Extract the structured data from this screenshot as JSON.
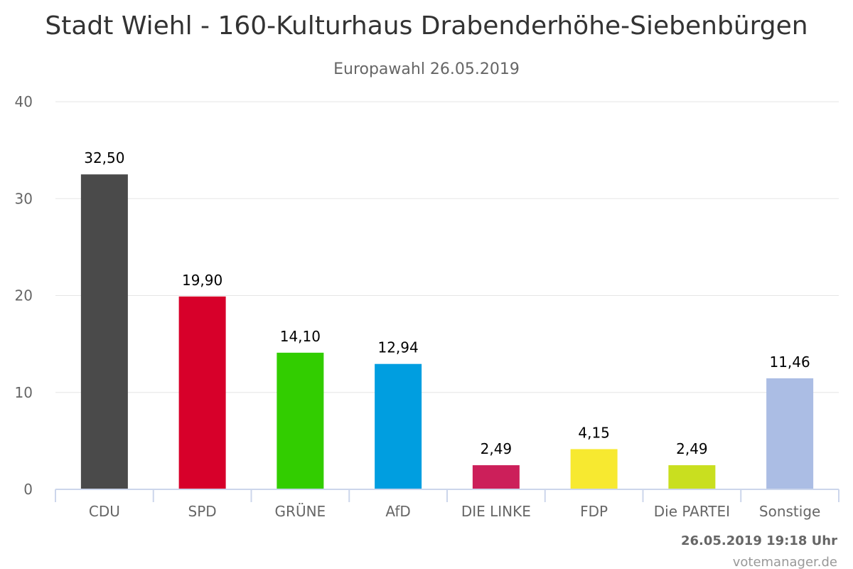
{
  "timestamp": "26.05.2019 19:18 Uhr",
  "credit": "votemanager.de",
  "chart_data": {
    "type": "bar",
    "title": "Stadt Wiehl - 160-Kulturhaus Drabenderhöhe-Siebenbürgen",
    "subtitle": "Europawahl 26.05.2019",
    "categories": [
      "CDU",
      "SPD",
      "GRÜNE",
      "AfD",
      "DIE LINKE",
      "FDP",
      "Die PARTEI",
      "Sonstige"
    ],
    "values": [
      32.5,
      19.9,
      14.1,
      12.94,
      2.49,
      4.15,
      2.49,
      11.46
    ],
    "value_labels": [
      "32,50",
      "19,90",
      "14,10",
      "12,94",
      "2,49",
      "4,15",
      "2,49",
      "11,46"
    ],
    "colors": [
      "#4a4a4a",
      "#d7002a",
      "#32cd00",
      "#009ee0",
      "#cc1f5a",
      "#f7e930",
      "#c9df1f",
      "#abbde4"
    ],
    "ylim": [
      0,
      40
    ],
    "yticks": [
      "0",
      "10",
      "20",
      "30",
      "40"
    ],
    "grid": true,
    "legend": "none"
  }
}
